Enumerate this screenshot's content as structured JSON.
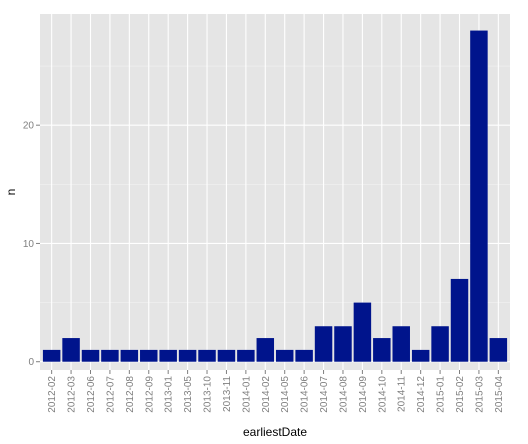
{
  "chart_data": {
    "type": "bar",
    "title": "",
    "xlabel": "earliestDate",
    "ylabel": "n",
    "categories": [
      "2012-02",
      "2012-03",
      "2012-06",
      "2012-07",
      "2012-08",
      "2012-09",
      "2013-01",
      "2013-05",
      "2013-10",
      "2013-11",
      "2014-01",
      "2014-02",
      "2014-05",
      "2014-06",
      "2014-07",
      "2014-08",
      "2014-09",
      "2014-10",
      "2014-11",
      "2014-12",
      "2015-01",
      "2015-02",
      "2015-03",
      "2015-04"
    ],
    "values": [
      1,
      2,
      1,
      1,
      1,
      1,
      1,
      1,
      1,
      1,
      1,
      2,
      1,
      1,
      3,
      3,
      5,
      2,
      3,
      1,
      3,
      7,
      28,
      2
    ],
    "ylim": [
      -0.7,
      29.4
    ],
    "yticks": [
      0,
      10,
      20
    ],
    "grid": true,
    "legend": "none",
    "colors": {
      "bar": "#00148c",
      "panel": "#e5e5e5",
      "grid_major": "#ffffff",
      "grid_minor": "#f2f2f2",
      "tick_text": "#7f7f7f",
      "axis_title": "#000000"
    }
  }
}
